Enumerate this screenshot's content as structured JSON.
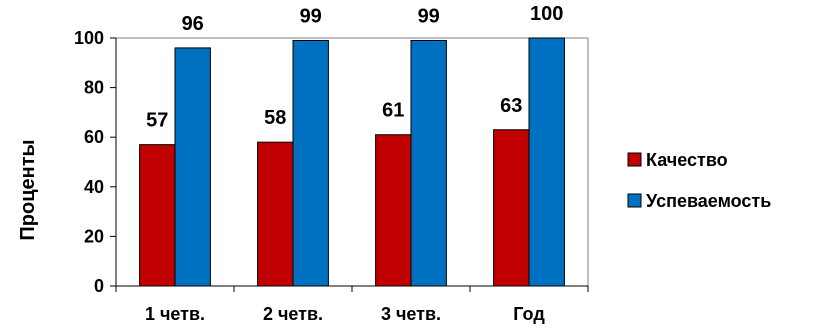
{
  "chart_data": {
    "type": "bar",
    "title": "",
    "xlabel": "",
    "ylabel": "Проценты",
    "ylim": [
      0,
      100
    ],
    "yticks": [
      0,
      20,
      40,
      60,
      80,
      100
    ],
    "categories": [
      "1 четв.",
      "2 четв.",
      "3 четв.",
      "Год"
    ],
    "series": [
      {
        "name": "Качество",
        "values": [
          57,
          58,
          61,
          63
        ],
        "color": "#c00000"
      },
      {
        "name": "Успеваемость",
        "values": [
          96,
          99,
          99,
          100
        ],
        "color": "#0070c0"
      }
    ],
    "grid": false,
    "legend_position": "right",
    "show_data_labels": true
  }
}
